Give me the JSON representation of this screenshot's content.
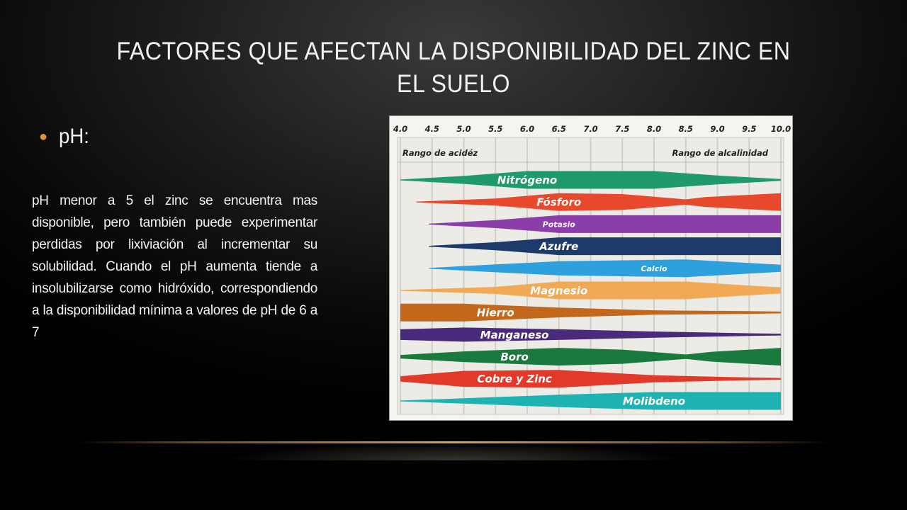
{
  "slide": {
    "title": "FACTORES QUE AFECTAN LA DISPONIBILIDAD DEL ZINC EN EL SUELO",
    "bullet": "pH:",
    "body": "pH menor a 5 el zinc se encuentra mas disponible, pero también puede experimentar perdidas por lixiviación al incrementar su solubilidad. Cuando el pH aumenta tiende a insolubilizarse como hidróxido, correspondiendo a la disponibilidad mínima a valores de pH de 6 a 7"
  },
  "chart_data": {
    "type": "area",
    "x_ticks": [
      "4.0",
      "4.5",
      "5.0",
      "5.5",
      "6.0",
      "6.5",
      "7.0",
      "7.5",
      "8.0",
      "8.5",
      "9.0",
      "9.5",
      "10.0"
    ],
    "xlim": [
      4.0,
      10.0
    ],
    "range_labels": {
      "acid": "Rango de acidéz",
      "alkaline": "Rango de alcalinidad"
    },
    "series": [
      {
        "name": "Nitrógeno",
        "color": "#1f9a6a",
        "profile": [
          [
            4.0,
            0.05
          ],
          [
            5.0,
            0.45
          ],
          [
            6.0,
            1.0
          ],
          [
            8.0,
            1.0
          ],
          [
            9.0,
            0.5
          ],
          [
            10.0,
            0.1
          ]
        ]
      },
      {
        "name": "Fósforo",
        "color": "#e8482c",
        "profile": [
          [
            4.25,
            0.05
          ],
          [
            5.5,
            0.4
          ],
          [
            6.5,
            1.0
          ],
          [
            7.5,
            0.9
          ],
          [
            8.5,
            0.3
          ],
          [
            8.8,
            0.55
          ],
          [
            10.0,
            1.0
          ]
        ]
      },
      {
        "name": "Potasio",
        "color": "#8c3ea8",
        "profile": [
          [
            4.45,
            0.05
          ],
          [
            5.5,
            0.45
          ],
          [
            6.5,
            1.0
          ],
          [
            10.0,
            1.0
          ]
        ]
      },
      {
        "name": "Azufre",
        "color": "#1c3a6a",
        "profile": [
          [
            4.45,
            0.05
          ],
          [
            5.5,
            0.45
          ],
          [
            6.5,
            1.0
          ],
          [
            10.0,
            1.0
          ]
        ]
      },
      {
        "name": "Calcio",
        "color": "#2ea0dd",
        "profile": [
          [
            4.45,
            0.05
          ],
          [
            5.5,
            0.45
          ],
          [
            6.5,
            0.8
          ],
          [
            8.5,
            1.0
          ],
          [
            9.5,
            0.6
          ],
          [
            10.0,
            0.4
          ]
        ]
      },
      {
        "name": "Magnesio",
        "color": "#f2a955",
        "profile": [
          [
            4.0,
            0.05
          ],
          [
            5.5,
            0.4
          ],
          [
            6.5,
            1.0
          ],
          [
            8.5,
            1.0
          ],
          [
            9.5,
            0.55
          ],
          [
            10.0,
            0.35
          ]
        ]
      },
      {
        "name": "Hierro",
        "color": "#c2671c",
        "profile": [
          [
            4.0,
            1.0
          ],
          [
            5.0,
            1.0
          ],
          [
            6.5,
            0.55
          ],
          [
            8.0,
            0.25
          ],
          [
            9.5,
            0.15
          ],
          [
            10.0,
            0.1
          ]
        ]
      },
      {
        "name": "Manganeso",
        "color": "#4a2a7a",
        "profile": [
          [
            4.0,
            0.6
          ],
          [
            5.0,
            0.8
          ],
          [
            6.5,
            0.6
          ],
          [
            8.0,
            0.35
          ],
          [
            9.5,
            0.15
          ],
          [
            10.0,
            0.1
          ]
        ]
      },
      {
        "name": "Boro",
        "color": "#1a7a3e",
        "profile": [
          [
            4.0,
            0.2
          ],
          [
            5.0,
            0.6
          ],
          [
            6.5,
            1.0
          ],
          [
            7.5,
            0.8
          ],
          [
            8.5,
            0.25
          ],
          [
            8.9,
            0.55
          ],
          [
            10.0,
            1.0
          ]
        ]
      },
      {
        "name": "Cobre y Zinc",
        "color": "#e23a2a",
        "profile": [
          [
            4.0,
            0.3
          ],
          [
            5.0,
            0.9
          ],
          [
            6.5,
            1.0
          ],
          [
            8.0,
            0.4
          ],
          [
            9.5,
            0.15
          ],
          [
            10.0,
            0.1
          ]
        ]
      },
      {
        "name": "Molibdeno",
        "color": "#1fb2b2",
        "profile": [
          [
            4.0,
            0.05
          ],
          [
            5.0,
            0.3
          ],
          [
            6.5,
            0.7
          ],
          [
            8.0,
            1.0
          ],
          [
            10.0,
            1.0
          ]
        ]
      }
    ]
  }
}
